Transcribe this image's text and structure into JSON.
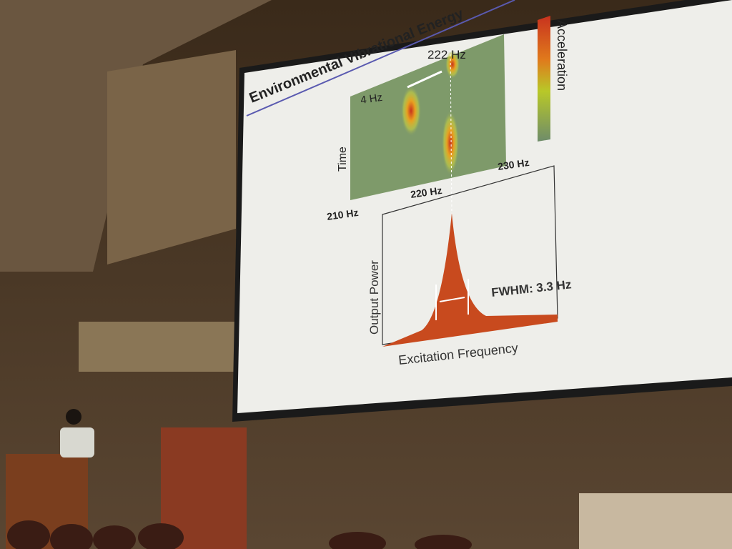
{
  "slide": {
    "title": "Environmental Vibrational Energy",
    "spectrogram": {
      "peak_label": "222 Hz",
      "span_label": "4 Hz",
      "y_label": "Time",
      "x_labels": [
        "210 Hz",
        "220 Hz",
        "230 Hz"
      ],
      "colorbar_label": "Acceleration"
    },
    "power_plot": {
      "y_label": "Output Power",
      "x_label": "Excitation Frequency",
      "annotation": "FWHM: 3.3 Hz"
    }
  }
}
